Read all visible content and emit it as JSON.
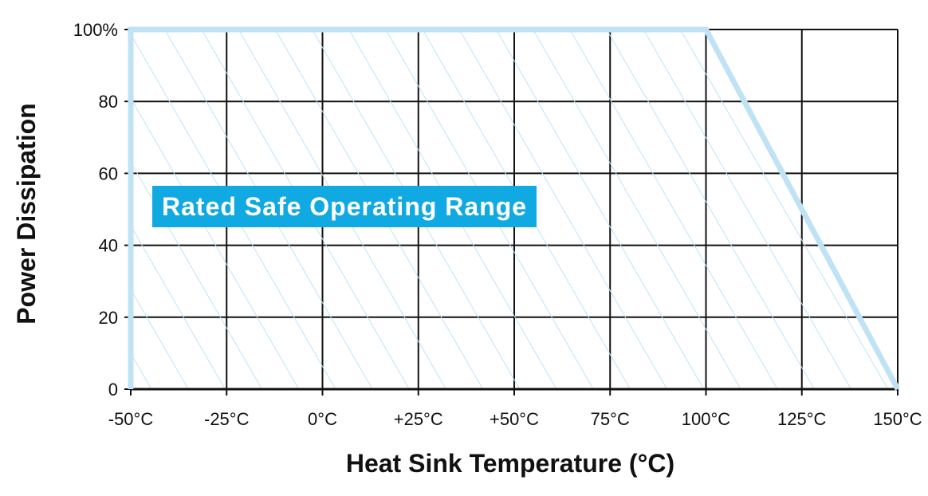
{
  "chart_data": {
    "type": "area",
    "xlabel": "Heat Sink Temperature (°C)",
    "ylabel": "Power Dissipation",
    "x_tick_labels": [
      "-50°C",
      "-25°C",
      "0°C",
      "+25°C",
      "+50°C",
      "75°C",
      "100°C",
      "125°C",
      "150°C"
    ],
    "x_ticks": [
      -50,
      -25,
      0,
      25,
      50,
      75,
      100,
      125,
      150
    ],
    "y_tick_labels": [
      "0",
      "20",
      "40",
      "60",
      "80",
      "100%"
    ],
    "y_ticks": [
      0,
      20,
      40,
      60,
      80,
      100
    ],
    "xlim": [
      -50,
      150
    ],
    "ylim": [
      0,
      100
    ],
    "grid": true,
    "series": [
      {
        "x": [
          -50,
          100,
          150
        ],
        "y": [
          100,
          100,
          0
        ]
      }
    ],
    "annotation": "Rated Safe Operating Range",
    "colors": {
      "curve": "#bfe3f5",
      "hatch": "#bfe3f5",
      "label_bg": "#11a9e2",
      "grid": "#111111"
    }
  }
}
